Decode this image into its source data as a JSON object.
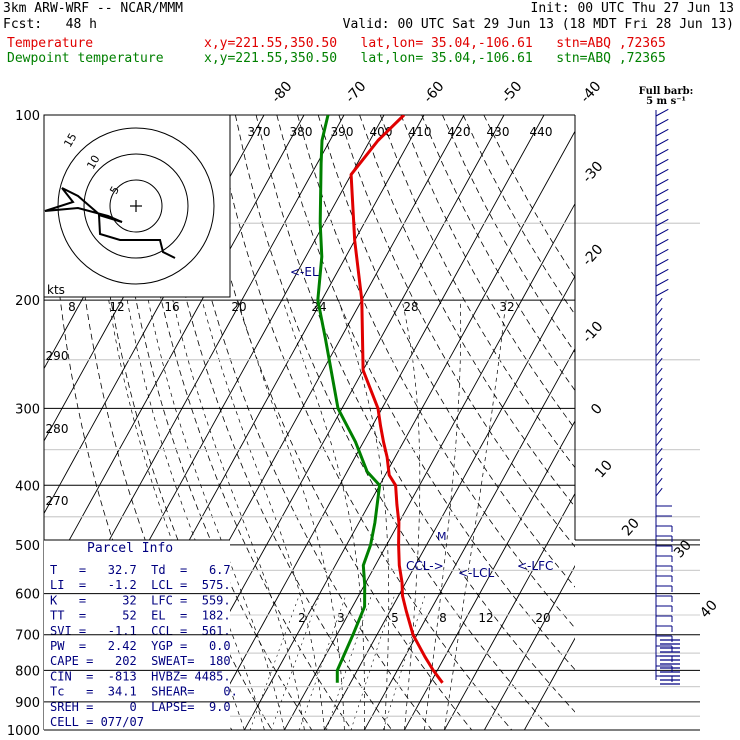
{
  "header": {
    "model": "3km ARW-WRF -- NCAR/MMM",
    "init": "Init: 00 UTC Thu 27 Jun 13",
    "fcst": "Fcst:   48 h",
    "valid": "Valid: 00 UTC Sat 29 Jun 13 (18 MDT Fri 28 Jun 13)",
    "temp_label": "Temperature",
    "temp_loc": "x,y=221.55,350.50   lat,lon= 35.04,-106.61   stn=ABQ ,72365",
    "dew_label": "Dewpoint temperature",
    "dew_loc": "x,y=221.55,350.50   lat,lon= 35.04,-106.61   stn=ABQ ,72365"
  },
  "barb_legend": {
    "full": "Full barb:",
    "value": "5 m s⁻¹"
  },
  "hodograph": {
    "units": "kts",
    "rings": [
      "5",
      "10",
      "15"
    ],
    "trace": [
      [
        6,
        -1
      ],
      [
        10,
        -1.5
      ],
      [
        14,
        1
      ],
      [
        13,
        3
      ],
      [
        14,
        5
      ],
      [
        12,
        6
      ],
      [
        7,
        7
      ],
      [
        4,
        7
      ],
      [
        0,
        5
      ],
      [
        -3,
        3
      ],
      [
        -6,
        5
      ],
      [
        -9,
        0
      ]
    ]
  },
  "parcel_info": {
    "title": "Parcel Info",
    "rows": [
      "T   =   32.7  Td  =   6.7",
      "LI  =   -1.2  LCL =  575.",
      "K   =     32  LFC =  559.",
      "TT  =     52  EL  =  182.",
      "SVI =   -1.1  CCL =  561.",
      "PW  =   2.42  YGP =   0.0",
      "CAPE =   202  SWEAT=  180",
      "CIN  =  -813  HVBZ= 4485.",
      "Tc   =  34.1  SHEAR=    0.",
      "SREH =     0  LAPSE=  9.0",
      "CELL = 077/07"
    ]
  },
  "markers": {
    "el": "<-EL",
    "ccl": "CCL->",
    "lcl": "<-LCL",
    "lfc": "<-LFC"
  },
  "chart_data": {
    "type": "line",
    "subtype": "skew-T log-P",
    "y_axis": "pressure (hPa), log scale",
    "ylim": [
      1000,
      100
    ],
    "pressure_levels": [
      100,
      200,
      300,
      400,
      500,
      600,
      700,
      800,
      900,
      1000
    ],
    "isotherm_labels": [
      "-80",
      "-70",
      "-60",
      "-50",
      "-40",
      "-30",
      "-20",
      "-10",
      "0",
      "10",
      "20",
      "30",
      "40"
    ],
    "theta_labels": [
      "370",
      "380",
      "390",
      "400",
      "410",
      "420",
      "430",
      "440"
    ],
    "mixing_ratio_upper": [
      "8",
      "12",
      "16",
      "20",
      "24",
      "28",
      "32"
    ],
    "mixing_ratio_lower": [
      "2",
      "3",
      "5",
      "8",
      "12",
      "20"
    ],
    "dry_adiabat_labels": [
      "290",
      "280",
      "270"
    ],
    "series": [
      {
        "name": "Temperature",
        "color": "#e00000",
        "points": [
          [
            838,
            33
          ],
          [
            800,
            29
          ],
          [
            760,
            25
          ],
          [
            700,
            19
          ],
          [
            640,
            14
          ],
          [
            605,
            11
          ],
          [
            575,
            9
          ],
          [
            540,
            6
          ],
          [
            500,
            3
          ],
          [
            460,
            0
          ],
          [
            430,
            -3
          ],
          [
            400,
            -6
          ],
          [
            385,
            -9
          ],
          [
            360,
            -12
          ],
          [
            340,
            -15
          ],
          [
            320,
            -18
          ],
          [
            300,
            -21
          ],
          [
            260,
            -30
          ],
          [
            200,
            -40
          ],
          [
            160,
            -50
          ],
          [
            125,
            -60
          ],
          [
            110,
            -58
          ],
          [
            100,
            -55
          ]
        ]
      },
      {
        "name": "Dewpoint temperature",
        "color": "#008000",
        "points": [
          [
            838,
            6.7
          ],
          [
            800,
            5
          ],
          [
            700,
            4
          ],
          [
            630,
            3
          ],
          [
            580,
            0
          ],
          [
            540,
            -3
          ],
          [
            500,
            -4
          ],
          [
            460,
            -6
          ],
          [
            400,
            -10
          ],
          [
            380,
            -15
          ],
          [
            340,
            -22
          ],
          [
            300,
            -31
          ],
          [
            260,
            -38
          ],
          [
            230,
            -44
          ],
          [
            200,
            -51
          ],
          [
            170,
            -56
          ],
          [
            150,
            -61
          ],
          [
            120,
            -69
          ],
          [
            110,
            -72
          ],
          [
            100,
            -74
          ]
        ]
      }
    ]
  }
}
